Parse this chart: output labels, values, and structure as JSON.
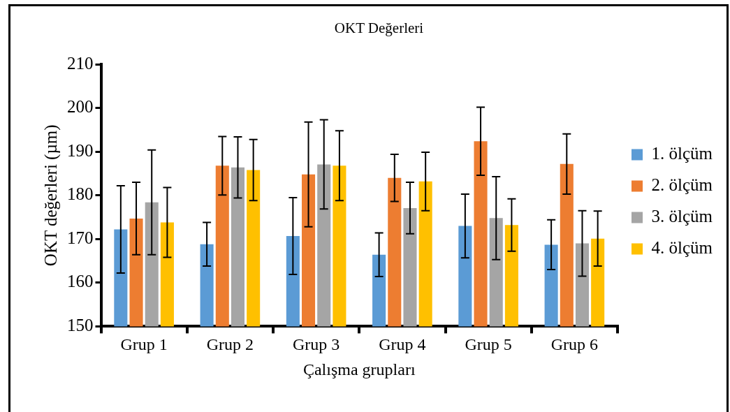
{
  "chart_data": {
    "type": "bar",
    "title": "OKT Değerleri",
    "xlabel": "Çalışma grupları",
    "ylabel": "OKT değerleri (µm)",
    "categories": [
      "Grup 1",
      "Grup 2",
      "Grup 3",
      "Grup 4",
      "Grup 5",
      "Grup 6"
    ],
    "series": [
      {
        "name": "1. ölçüm",
        "color": "#5b9bd5",
        "values": [
          172.2,
          168.8,
          170.7,
          166.4,
          173.0,
          168.7
        ],
        "errors": [
          10,
          5,
          8.8,
          5,
          7.3,
          5.7
        ]
      },
      {
        "name": "2. ölçüm",
        "color": "#ed7d31",
        "values": [
          174.7,
          186.8,
          184.8,
          184.0,
          192.4,
          187.2
        ],
        "errors": [
          8.3,
          6.7,
          12,
          5.4,
          7.8,
          6.9
        ]
      },
      {
        "name": "3. ölçüm",
        "color": "#a5a5a5",
        "values": [
          178.4,
          186.4,
          187.1,
          177.1,
          174.8,
          169.0
        ],
        "errors": [
          12,
          7,
          10.2,
          5.9,
          9.5,
          7.5
        ]
      },
      {
        "name": "4. ölçüm",
        "color": "#ffc000",
        "values": [
          173.8,
          185.8,
          186.8,
          183.2,
          173.2,
          170.1
        ],
        "errors": [
          8,
          7,
          8,
          6.7,
          6,
          6.3
        ]
      }
    ],
    "ylim": [
      150,
      210
    ],
    "yticks": [
      150,
      160,
      170,
      180,
      190,
      200,
      210
    ],
    "grid": false,
    "legend": "right"
  }
}
